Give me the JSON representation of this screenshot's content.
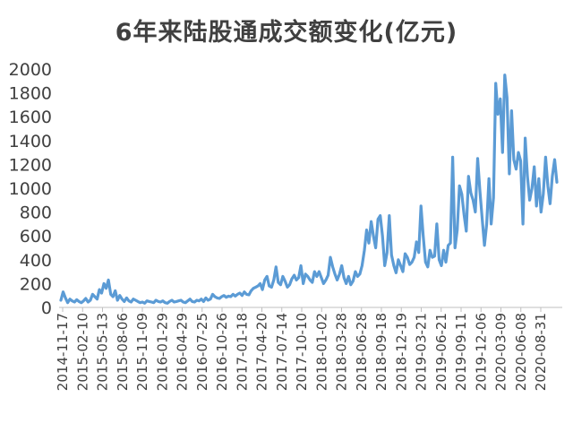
{
  "chart_data": {
    "type": "line",
    "title": "6年来陆股通成交额变化(亿元)",
    "xlabel": "",
    "ylabel": "",
    "ylim": [
      0,
      2000
    ],
    "yticks": [
      0,
      200,
      400,
      600,
      800,
      1000,
      1200,
      1400,
      1600,
      1800,
      2000
    ],
    "grid": false,
    "legend": "none",
    "color": "#5b9bd5",
    "x_tick_labels": [
      "2014-11-17",
      "2015-02-10",
      "2015-05-13",
      "2015-08-06",
      "2015-11-09",
      "2016-01-29",
      "2016-04-29",
      "2016-07-25",
      "2016-10-26",
      "2017-01-18",
      "2017-04-20",
      "2017-07-14",
      "2017-10-10",
      "2018-01-02",
      "2018-03-28",
      "2018-06-28",
      "2018-09-18",
      "2018-12-19",
      "2019-03-21",
      "2019-06-21",
      "2019-09-11",
      "2019-12-06",
      "2020-03-09",
      "2020-06-08",
      "2020-08-31"
    ],
    "series": [
      {
        "values": [
          60,
          130,
          80,
          40,
          70,
          55,
          45,
          65,
          50,
          40,
          55,
          75,
          45,
          60,
          110,
          90,
          70,
          150,
          120,
          200,
          160,
          230,
          110,
          90,
          140,
          60,
          100,
          70,
          50,
          80,
          55,
          45,
          70,
          60,
          50,
          40,
          45,
          35,
          55,
          50,
          45,
          40,
          60,
          50,
          45,
          55,
          40,
          35,
          50,
          60,
          45,
          50,
          55,
          60,
          45,
          40,
          55,
          70,
          50,
          45,
          60,
          55,
          70,
          50,
          80,
          60,
          70,
          110,
          90,
          80,
          75,
          90,
          100,
          85,
          95,
          90,
          110,
          95,
          110,
          120,
          100,
          130,
          110,
          105,
          140,
          160,
          170,
          180,
          200,
          150,
          230,
          260,
          180,
          170,
          230,
          340,
          210,
          190,
          260,
          220,
          170,
          190,
          240,
          270,
          230,
          250,
          350,
          200,
          280,
          260,
          230,
          210,
          300,
          260,
          300,
          250,
          200,
          230,
          270,
          420,
          340,
          280,
          230,
          280,
          350,
          250,
          200,
          260,
          190,
          220,
          300,
          260,
          280,
          350,
          480,
          650,
          540,
          720,
          600,
          500,
          740,
          770,
          600,
          350,
          460,
          770,
          440,
          350,
          290,
          400,
          350,
          300,
          450,
          420,
          360,
          380,
          420,
          550,
          460,
          850,
          600,
          380,
          340,
          480,
          420,
          430,
          700,
          400,
          350,
          480,
          380,
          520,
          540,
          1260,
          500,
          650,
          1020,
          950,
          780,
          640,
          1100,
          960,
          900,
          800,
          1250,
          980,
          750,
          520,
          700,
          1080,
          700,
          920,
          1880,
          1620,
          1750,
          1300,
          1950,
          1760,
          1120,
          1650,
          1240,
          1160,
          1300,
          1230,
          700,
          1420,
          1100,
          900,
          1000,
          1180,
          850,
          1080,
          800,
          950,
          1260,
          1020,
          870,
          1100,
          1240,
          1050
        ]
      }
    ]
  }
}
